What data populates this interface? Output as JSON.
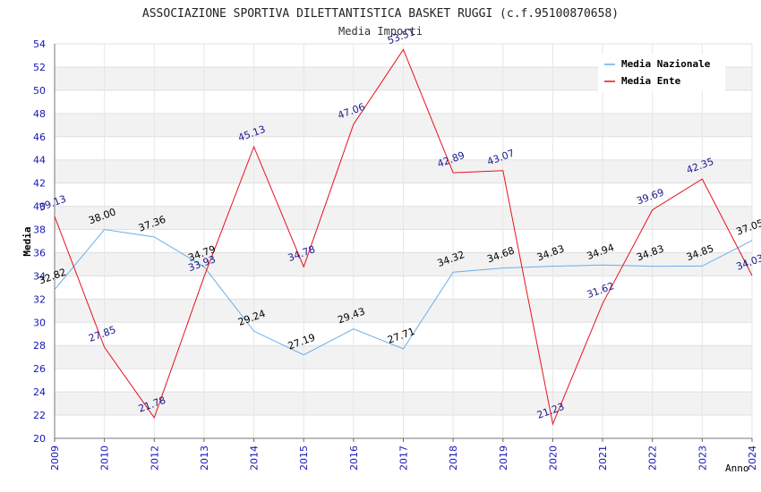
{
  "chart_data": {
    "type": "line",
    "title": "ASSOCIAZIONE SPORTIVA DILETTANTISTICA BASKET RUGGI (c.f.95100870658)",
    "subtitle": "Media Importi",
    "xlabel": "Anno",
    "ylabel": "Media",
    "ylim": [
      20,
      54
    ],
    "ytick_step": 2,
    "grid": true,
    "legend_position": "top-right",
    "categories": [
      "2009",
      "2010",
      "2012",
      "2013",
      "2014",
      "2015",
      "2016",
      "2017",
      "2018",
      "2019",
      "2020",
      "2021",
      "2022",
      "2023",
      "2024"
    ],
    "series": [
      {
        "name": "Media Nazionale",
        "color": "#6aaee8",
        "label_color": "#000000",
        "values": [
          32.82,
          38.0,
          37.36,
          34.79,
          29.24,
          27.19,
          29.43,
          27.71,
          34.32,
          34.68,
          34.83,
          34.94,
          34.83,
          34.85,
          37.05
        ],
        "labels": [
          "32.82",
          "38.00",
          "37.36",
          "34.79",
          "29.24",
          "27.19",
          "29.43",
          "27.71",
          "34.32",
          "34.68",
          "34.83",
          "34.94",
          "34.83",
          "34.85",
          "37.05"
        ]
      },
      {
        "name": "Media Ente",
        "color": "#e8101e",
        "label_color": "#1a1a8c",
        "values": [
          39.13,
          27.85,
          21.78,
          33.93,
          45.13,
          34.78,
          47.06,
          53.51,
          42.89,
          43.07,
          21.23,
          31.62,
          39.69,
          42.35,
          34.03
        ],
        "labels": [
          "39.13",
          "27.85",
          "21.78",
          "33.93",
          "45.13",
          "34.78",
          "47.06",
          "53.51",
          "42.89",
          "43.07",
          "21.23",
          "31.62",
          "39.69",
          "42.35",
          "34.03"
        ]
      }
    ]
  }
}
